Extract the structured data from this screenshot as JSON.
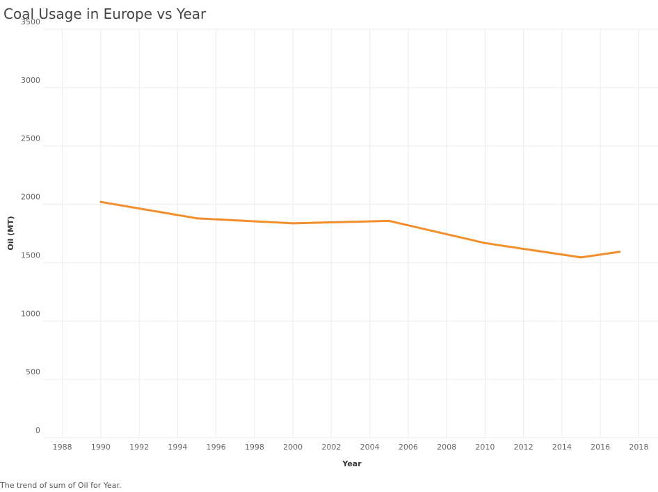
{
  "title": "Coal Usage in Europe vs Year",
  "caption": "The trend of sum of Oil for Year.",
  "chart_data": {
    "type": "line",
    "title": "Coal Usage in Europe vs Year",
    "xlabel": "Year",
    "ylabel": "Oil (MT)",
    "xlim": [
      1987,
      2019
    ],
    "ylim": [
      0,
      3500
    ],
    "x_ticks": [
      1988,
      1990,
      1992,
      1994,
      1996,
      1998,
      2000,
      2002,
      2004,
      2006,
      2008,
      2010,
      2012,
      2014,
      2016,
      2018
    ],
    "y_ticks": [
      0,
      500,
      1000,
      1500,
      2000,
      2500,
      3000,
      3500
    ],
    "grid": true,
    "color": "#f28e2b",
    "series": [
      {
        "x": [
          1990,
          1995,
          2000,
          2005,
          2010,
          2015,
          2017
        ],
        "values": [
          2020,
          1880,
          1837,
          1858,
          1668,
          1545,
          1593
        ]
      }
    ]
  }
}
